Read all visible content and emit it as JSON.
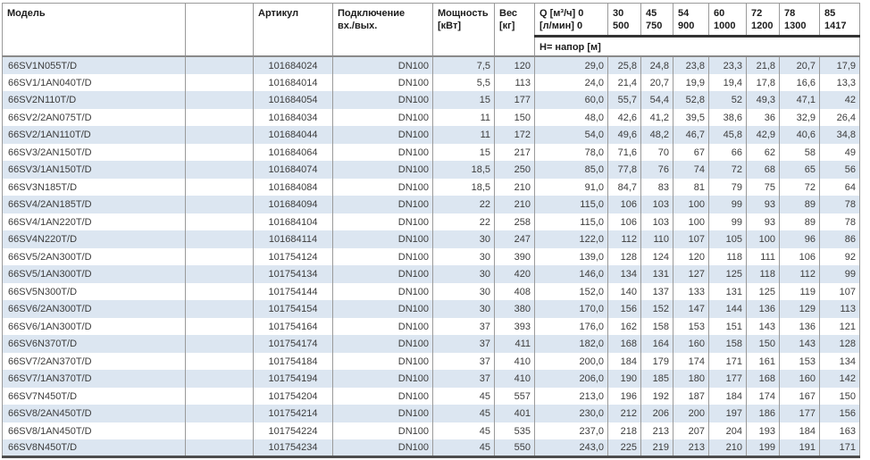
{
  "colors": {
    "row_stripe_blue": "#dce6f1",
    "grid_line_gray": "#9a9a9a",
    "heavy_rule_dark": "#333333",
    "text_dark": "#3c3c3c"
  },
  "table": {
    "headers": {
      "model": "Модель",
      "article": "Артикул",
      "connection_line1": "Подключение",
      "connection_line2": "вх./вых.",
      "power_line1": "Мощность",
      "power_line2": "[кВт]",
      "weight_line1": "Вес",
      "weight_line2": "[кг]",
      "q_line1": "Q [м³/ч] 0",
      "q_line2": "[л/мин] 0",
      "head_label": "Н= напор [м]"
    },
    "flow_columns": [
      {
        "m3h": "30",
        "lmin": "500"
      },
      {
        "m3h": "45",
        "lmin": "750"
      },
      {
        "m3h": "54",
        "lmin": "900"
      },
      {
        "m3h": "60",
        "lmin": "1000"
      },
      {
        "m3h": "72",
        "lmin": "1200"
      },
      {
        "m3h": "78",
        "lmin": "1300"
      },
      {
        "m3h": "85",
        "lmin": "1417"
      }
    ],
    "rows": [
      {
        "model": "66SV1N055T/D",
        "article": "101684024",
        "connection": "DN100",
        "power": "7,5",
        "weight": "120",
        "q0": "29,0",
        "heads": [
          "25,8",
          "24,8",
          "23,8",
          "23,3",
          "21,8",
          "20,7",
          "17,9"
        ]
      },
      {
        "model": "66SV1/1AN040T/D",
        "article": "101684014",
        "connection": "DN100",
        "power": "5,5",
        "weight": "113",
        "q0": "24,0",
        "heads": [
          "21,4",
          "20,7",
          "19,9",
          "19,4",
          "17,8",
          "16,6",
          "13,3"
        ]
      },
      {
        "model": "66SV2N110T/D",
        "article": "101684054",
        "connection": "DN100",
        "power": "15",
        "weight": "177",
        "q0": "60,0",
        "heads": [
          "55,7",
          "54,4",
          "52,8",
          "52",
          "49,3",
          "47,1",
          "42"
        ]
      },
      {
        "model": "66SV2/2AN075T/D",
        "article": "101684034",
        "connection": "DN100",
        "power": "11",
        "weight": "150",
        "q0": "48,0",
        "heads": [
          "42,6",
          "41,2",
          "39,5",
          "38,6",
          "36",
          "32,9",
          "26,4"
        ]
      },
      {
        "model": "66SV2/1AN110T/D",
        "article": "101684044",
        "connection": "DN100",
        "power": "11",
        "weight": "172",
        "q0": "54,0",
        "heads": [
          "49,6",
          "48,2",
          "46,7",
          "45,8",
          "42,9",
          "40,6",
          "34,8"
        ]
      },
      {
        "model": "66SV3/2AN150T/D",
        "article": "101684064",
        "connection": "DN100",
        "power": "15",
        "weight": "217",
        "q0": "78,0",
        "heads": [
          "71,6",
          "70",
          "67",
          "66",
          "62",
          "58",
          "49"
        ]
      },
      {
        "model": "66SV3/1AN150T/D",
        "article": "101684074",
        "connection": "DN100",
        "power": "18,5",
        "weight": "250",
        "q0": "85,0",
        "heads": [
          "77,8",
          "76",
          "74",
          "72",
          "68",
          "65",
          "56"
        ]
      },
      {
        "model": "66SV3N185T/D",
        "article": "101684084",
        "connection": "DN100",
        "power": "18,5",
        "weight": "210",
        "q0": "91,0",
        "heads": [
          "84,7",
          "83",
          "81",
          "79",
          "75",
          "72",
          "64"
        ]
      },
      {
        "model": "66SV4/2AN185T/D",
        "article": "101684094",
        "connection": "DN100",
        "power": "22",
        "weight": "210",
        "q0": "115,0",
        "heads": [
          "106",
          "103",
          "100",
          "99",
          "93",
          "89",
          "78"
        ]
      },
      {
        "model": "66SV4/1AN220T/D",
        "article": "101684104",
        "connection": "DN100",
        "power": "22",
        "weight": "258",
        "q0": "115,0",
        "heads": [
          "106",
          "103",
          "100",
          "99",
          "93",
          "89",
          "78"
        ]
      },
      {
        "model": "66SV4N220T/D",
        "article": "101684114",
        "connection": "DN100",
        "power": "30",
        "weight": "247",
        "q0": "122,0",
        "heads": [
          "112",
          "110",
          "107",
          "105",
          "100",
          "96",
          "86"
        ]
      },
      {
        "model": "66SV5/2AN300T/D",
        "article": "101754124",
        "connection": "DN100",
        "power": "30",
        "weight": "390",
        "q0": "139,0",
        "heads": [
          "128",
          "124",
          "120",
          "118",
          "111",
          "106",
          "92"
        ]
      },
      {
        "model": "66SV5/1AN300T/D",
        "article": "101754134",
        "connection": "DN100",
        "power": "30",
        "weight": "420",
        "q0": "146,0",
        "heads": [
          "134",
          "131",
          "127",
          "125",
          "118",
          "112",
          "99"
        ]
      },
      {
        "model": "66SV5N300T/D",
        "article": "101754144",
        "connection": "DN100",
        "power": "30",
        "weight": "408",
        "q0": "152,0",
        "heads": [
          "140",
          "137",
          "133",
          "131",
          "125",
          "119",
          "107"
        ]
      },
      {
        "model": "66SV6/2AN300T/D",
        "article": "101754154",
        "connection": "DN100",
        "power": "30",
        "weight": "380",
        "q0": "170,0",
        "heads": [
          "156",
          "152",
          "147",
          "144",
          "136",
          "129",
          "113"
        ]
      },
      {
        "model": "66SV6/1AN300T/D",
        "article": "101754164",
        "connection": "DN100",
        "power": "37",
        "weight": "393",
        "q0": "176,0",
        "heads": [
          "162",
          "158",
          "153",
          "151",
          "143",
          "136",
          "121"
        ]
      },
      {
        "model": "66SV6N370T/D",
        "article": "101754174",
        "connection": "DN100",
        "power": "37",
        "weight": "411",
        "q0": "182,0",
        "heads": [
          "168",
          "164",
          "160",
          "158",
          "150",
          "143",
          "128"
        ]
      },
      {
        "model": "66SV7/2AN370T/D",
        "article": "101754184",
        "connection": "DN100",
        "power": "37",
        "weight": "410",
        "q0": "200,0",
        "heads": [
          "184",
          "179",
          "174",
          "171",
          "161",
          "153",
          "134"
        ]
      },
      {
        "model": "66SV7/1AN370T/D",
        "article": "101754194",
        "connection": "DN100",
        "power": "37",
        "weight": "410",
        "q0": "206,0",
        "heads": [
          "190",
          "185",
          "180",
          "177",
          "168",
          "160",
          "142"
        ]
      },
      {
        "model": "66SV7N450T/D",
        "article": "101754204",
        "connection": "DN100",
        "power": "45",
        "weight": "557",
        "q0": "213,0",
        "heads": [
          "196",
          "192",
          "187",
          "184",
          "174",
          "167",
          "150"
        ]
      },
      {
        "model": "66SV8/2AN450T/D",
        "article": "101754214",
        "connection": "DN100",
        "power": "45",
        "weight": "401",
        "q0": "230,0",
        "heads": [
          "212",
          "206",
          "200",
          "197",
          "186",
          "177",
          "156"
        ]
      },
      {
        "model": "66SV8/1AN450T/D",
        "article": "101754224",
        "connection": "DN100",
        "power": "45",
        "weight": "535",
        "q0": "237,0",
        "heads": [
          "218",
          "213",
          "207",
          "204",
          "193",
          "184",
          "163"
        ]
      },
      {
        "model": "66SV8N450T/D",
        "article": "101754234",
        "connection": "DN100",
        "power": "45",
        "weight": "550",
        "q0": "243,0",
        "heads": [
          "225",
          "219",
          "213",
          "210",
          "199",
          "191",
          "171"
        ]
      }
    ]
  }
}
